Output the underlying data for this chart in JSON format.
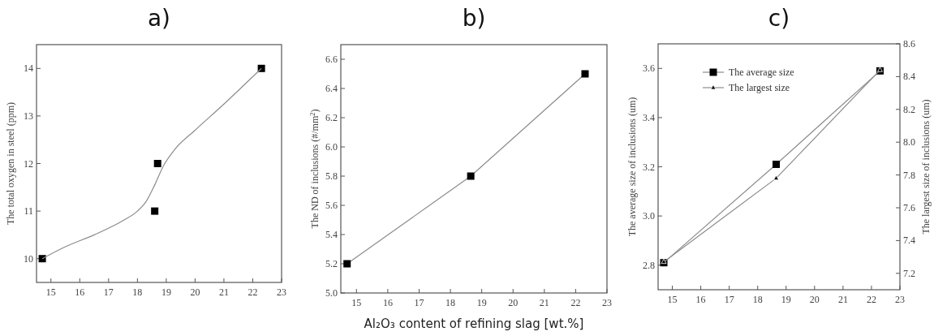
{
  "chart_data": [
    {
      "type": "scatter",
      "title": "a)",
      "ylabel": "The total oxygen in steel (ppm)",
      "xlim": [
        14.5,
        23
      ],
      "xticks": [
        15,
        16,
        17,
        18,
        19,
        20,
        21,
        22,
        23
      ],
      "ylim": [
        9.5,
        14.5
      ],
      "yticks": [
        10,
        11,
        12,
        13,
        14
      ],
      "grid": false,
      "legend": false,
      "marker": "square",
      "series": [
        {
          "color": "#000000",
          "x": [
            14.7,
            18.6,
            18.7,
            22.3
          ],
          "values": [
            10,
            11,
            12,
            14
          ]
        },
        {
          "type": "line",
          "marker": "none",
          "color": "#8c8c8c",
          "x": [
            14.7,
            15.5,
            16.5,
            17.5,
            18.0,
            18.3,
            18.6,
            18.9,
            19.3,
            20.0,
            21.0,
            22.3
          ],
          "values": [
            10,
            10.25,
            10.5,
            10.8,
            11.0,
            11.2,
            11.55,
            11.95,
            12.3,
            12.7,
            13.25,
            14
          ]
        }
      ]
    },
    {
      "type": "line",
      "title": "b)",
      "xlabel": "Al₂O₃ content of refining slag [wt.%]",
      "ylabel": "The ND of inclusions (#/mm$^{2}$)",
      "xlim": [
        14.5,
        23
      ],
      "xticks": [
        15,
        16,
        17,
        18,
        19,
        20,
        21,
        22,
        23
      ],
      "ylim": [
        5.0,
        6.7
      ],
      "yticks": [
        {
          "value": 5.0,
          "label": "5.0"
        },
        5.2,
        5.4,
        5.6,
        5.8,
        {
          "value": 6.0,
          "label": "6.0"
        },
        6.2,
        6.4,
        6.6
      ],
      "grid": false,
      "legend": false,
      "marker": "square",
      "series": [
        {
          "color": "#000000",
          "x": [
            14.7,
            18.65,
            22.3
          ],
          "values": [
            5.2,
            5.8,
            6.5
          ]
        }
      ]
    },
    {
      "type": "line",
      "title": "c)",
      "ylabel": "The average size of inclusions (um)",
      "y2label": "The largest size of inclusions (um)",
      "xlim": [
        14.5,
        23
      ],
      "xticks": [
        15,
        16,
        17,
        18,
        19,
        20,
        21,
        22,
        23
      ],
      "ylim": [
        2.7,
        3.7
      ],
      "yticks": [
        2.8,
        {
          "value": 3.0,
          "label": "3.0"
        },
        3.2,
        3.4,
        3.6
      ],
      "y2lim": [
        7.1,
        8.6
      ],
      "y2ticks": [
        7.2,
        7.4,
        7.6,
        7.8,
        {
          "value": 8.0,
          "label": "8.0"
        },
        8.2,
        8.4,
        8.6
      ],
      "grid": false,
      "legend": "top left",
      "series": [
        {
          "name": "The average size",
          "color": "#000000",
          "marker": "square",
          "x": [
            14.7,
            18.65,
            22.3
          ],
          "values": [
            2.81,
            3.21,
            3.59
          ]
        },
        {
          "name": "The largest size",
          "color": "#000000",
          "marker": "triangle",
          "axis": "y2",
          "x": [
            14.7,
            18.65,
            22.3
          ],
          "values": [
            7.27,
            7.78,
            8.44
          ]
        }
      ]
    }
  ]
}
